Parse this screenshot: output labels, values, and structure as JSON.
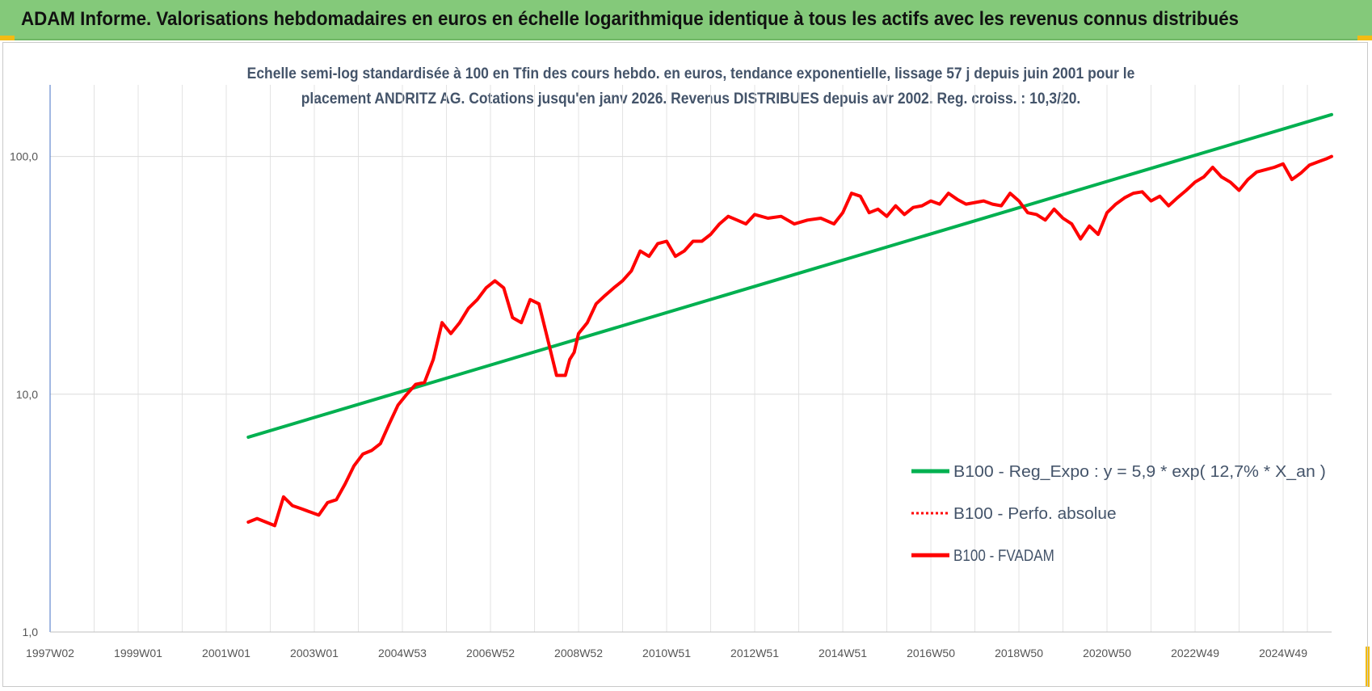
{
  "banner": {
    "title": "ADAM Informe. Valorisations hebdomadaires en euros en échelle logarithmique identique à tous les actifs avec les revenus connus distribués",
    "background": "#84c97a",
    "corner_color": "#f2bb13"
  },
  "chart_data": {
    "type": "line",
    "title": "Echelle semi-log standardisée à 100 en Tfin des cours hebdo. en euros, tendance exponentielle, lissage 57 j depuis juin 2001 pour le placement ANDRITZ AG. Cotations jusqu'en janv 2026. Revenus DISTRIBUES depuis avr 2002. Reg. croiss. : 10,3/20.",
    "xlabel": "",
    "ylabel": "",
    "y_scale": "log",
    "ylim": [
      1,
      200
    ],
    "xlim": [
      1997.0,
      2026.1
    ],
    "y_ticks": [
      {
        "value": 1,
        "label": "1,0"
      },
      {
        "value": 10,
        "label": "10,0"
      },
      {
        "value": 100,
        "label": "100,0"
      }
    ],
    "x_ticks": [
      {
        "value": 1997.0,
        "label": "1997W02"
      },
      {
        "value": 1999.0,
        "label": "1999W01"
      },
      {
        "value": 2001.0,
        "label": "2001W01"
      },
      {
        "value": 2003.0,
        "label": "2003W01"
      },
      {
        "value": 2005.0,
        "label": "2004W53"
      },
      {
        "value": 2007.0,
        "label": "2006W52"
      },
      {
        "value": 2009.0,
        "label": "2008W52"
      },
      {
        "value": 2011.0,
        "label": "2010W51"
      },
      {
        "value": 2013.0,
        "label": "2012W51"
      },
      {
        "value": 2015.0,
        "label": "2014W51"
      },
      {
        "value": 2017.0,
        "label": "2016W50"
      },
      {
        "value": 2019.0,
        "label": "2018W50"
      },
      {
        "value": 2021.0,
        "label": "2020W50"
      },
      {
        "value": 2023.0,
        "label": "2022W49"
      },
      {
        "value": 2025.0,
        "label": "2024W49"
      }
    ],
    "grid": true,
    "legend_position": "bottom-right",
    "series": [
      {
        "name": "B100 - Reg_Expo : y = 5,9 * exp( 12,7% *  X_an )",
        "color": "#00b050",
        "style": "solid",
        "x": [
          2001.5,
          2026.1
        ],
        "y": [
          6.6,
          150
        ]
      },
      {
        "name": "B100 - Perfo. absolue",
        "color": "#ff0000",
        "style": "dotted",
        "x": [],
        "y": []
      },
      {
        "name": "B100 - FVADAM",
        "color": "#ff0000",
        "style": "solid",
        "x": [
          2001.5,
          2001.7,
          2001.9,
          2002.1,
          2002.3,
          2002.5,
          2002.7,
          2002.9,
          2003.1,
          2003.3,
          2003.5,
          2003.7,
          2003.9,
          2004.1,
          2004.3,
          2004.5,
          2004.7,
          2004.9,
          2005.1,
          2005.3,
          2005.5,
          2005.7,
          2005.9,
          2006.1,
          2006.3,
          2006.5,
          2006.7,
          2006.9,
          2007.1,
          2007.3,
          2007.5,
          2007.7,
          2007.9,
          2008.1,
          2008.3,
          2008.5,
          2008.7,
          2008.8,
          2008.9,
          2009.0,
          2009.2,
          2009.4,
          2009.6,
          2009.8,
          2010.0,
          2010.2,
          2010.4,
          2010.6,
          2010.8,
          2011.0,
          2011.2,
          2011.4,
          2011.6,
          2011.8,
          2012.0,
          2012.2,
          2012.4,
          2012.6,
          2012.8,
          2013.0,
          2013.3,
          2013.6,
          2013.9,
          2014.2,
          2014.5,
          2014.8,
          2015.0,
          2015.2,
          2015.4,
          2015.6,
          2015.8,
          2016.0,
          2016.2,
          2016.4,
          2016.6,
          2016.8,
          2017.0,
          2017.2,
          2017.4,
          2017.6,
          2017.8,
          2018.0,
          2018.2,
          2018.4,
          2018.6,
          2018.8,
          2019.0,
          2019.2,
          2019.4,
          2019.6,
          2019.8,
          2020.0,
          2020.2,
          2020.4,
          2020.6,
          2020.8,
          2021.0,
          2021.2,
          2021.4,
          2021.6,
          2021.8,
          2022.0,
          2022.2,
          2022.4,
          2022.6,
          2022.8,
          2023.0,
          2023.2,
          2023.4,
          2023.6,
          2023.8,
          2024.0,
          2024.2,
          2024.4,
          2024.6,
          2024.8,
          2025.0,
          2025.2,
          2025.4,
          2025.6,
          2025.8,
          2026.0,
          2026.1
        ],
        "y": [
          2.9,
          3.0,
          2.9,
          2.8,
          3.7,
          3.4,
          3.3,
          3.2,
          3.1,
          3.5,
          3.6,
          4.2,
          5.0,
          5.6,
          5.8,
          6.2,
          7.5,
          9.0,
          10.0,
          11.0,
          11.2,
          14.0,
          20.0,
          18.0,
          20.0,
          23.0,
          25.0,
          28.0,
          30.0,
          28.0,
          21.0,
          20.0,
          25.0,
          24.0,
          17.0,
          12.0,
          12.0,
          14.0,
          15.0,
          18.0,
          20.0,
          24.0,
          26.0,
          28.0,
          30.0,
          33.0,
          40.0,
          38.0,
          43.0,
          44.0,
          38.0,
          40.0,
          44.0,
          44.0,
          47.0,
          52.0,
          56.0,
          54.0,
          52.0,
          57.0,
          55.0,
          56.0,
          52.0,
          54.0,
          55.0,
          52.0,
          58.0,
          70.0,
          68.0,
          58.0,
          60.0,
          56.0,
          62.0,
          57.0,
          61.0,
          62.0,
          65.0,
          63.0,
          70.0,
          66.0,
          63.0,
          64.0,
          65.0,
          63.0,
          62.0,
          70.0,
          65.0,
          58.0,
          57.0,
          54.0,
          60.0,
          55.0,
          52.0,
          45.0,
          51.0,
          47.0,
          58.0,
          63.0,
          67.0,
          70.0,
          71.0,
          65.0,
          68.0,
          62.0,
          67.0,
          72.0,
          78.0,
          82.0,
          90.0,
          82.0,
          78.0,
          72.0,
          80.0,
          86.0,
          88.0,
          90.0,
          93.0,
          80.0,
          85.0,
          92.0,
          95.0,
          98.0,
          100.0
        ]
      }
    ]
  }
}
